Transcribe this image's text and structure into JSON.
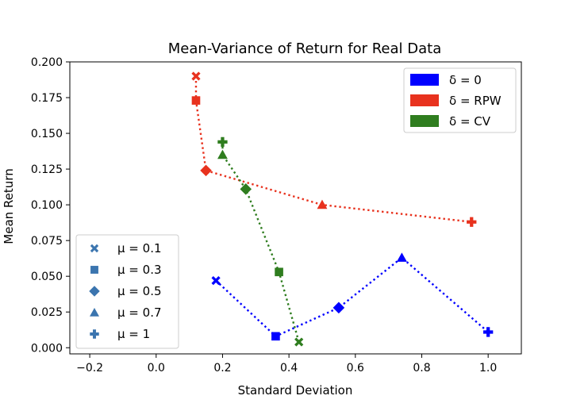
{
  "chart_data": {
    "type": "scatter",
    "title": "Mean-Variance of Return for Real Data",
    "xlabel": "Standard Deviation",
    "ylabel": "Mean Return",
    "xlim": [
      -0.26,
      1.1
    ],
    "ylim": [
      -0.0043,
      0.2
    ],
    "xticks": [
      -0.2,
      0.0,
      0.2,
      0.4,
      0.6,
      0.8,
      1.0
    ],
    "xtick_labels": [
      "−0.2",
      "0.0",
      "0.2",
      "0.4",
      "0.6",
      "0.8",
      "1.0"
    ],
    "yticks": [
      0.0,
      0.025,
      0.05,
      0.075,
      0.1,
      0.125,
      0.15,
      0.175,
      0.2
    ],
    "ytick_labels": [
      "0.000",
      "0.025",
      "0.050",
      "0.075",
      "0.100",
      "0.125",
      "0.150",
      "0.175",
      "0.200"
    ],
    "grid": false,
    "legend_color_placement": "top-right",
    "legend_marker_placement": "lower-left",
    "marker_color": "#3b75af",
    "color_legend": [
      {
        "label": "δ = 0",
        "color": "#0000ff"
      },
      {
        "label": "δ = RPW",
        "color": "#e8321e"
      },
      {
        "label": "δ = CV",
        "color": "#2f7d1f"
      }
    ],
    "marker_legend": [
      {
        "label": "μ = 0.1",
        "marker": "x"
      },
      {
        "label": "μ = 0.3",
        "marker": "square"
      },
      {
        "label": "μ = 0.5",
        "marker": "diamond"
      },
      {
        "label": "μ = 0.7",
        "marker": "triangle"
      },
      {
        "label": "μ = 1",
        "marker": "plus"
      }
    ],
    "series": [
      {
        "name": "δ = 0",
        "color": "#0000ff",
        "line_style": "dotted",
        "points": [
          {
            "x": 0.18,
            "y": 0.047,
            "marker": "x"
          },
          {
            "x": 0.36,
            "y": 0.008,
            "marker": "square"
          },
          {
            "x": 0.55,
            "y": 0.028,
            "marker": "diamond"
          },
          {
            "x": 0.74,
            "y": 0.063,
            "marker": "triangle"
          },
          {
            "x": 1.0,
            "y": 0.011,
            "marker": "plus"
          }
        ]
      },
      {
        "name": "δ = RPW",
        "color": "#e8321e",
        "line_style": "dotted",
        "points": [
          {
            "x": 0.12,
            "y": 0.19,
            "marker": "x"
          },
          {
            "x": 0.12,
            "y": 0.173,
            "marker": "square"
          },
          {
            "x": 0.15,
            "y": 0.124,
            "marker": "diamond"
          },
          {
            "x": 0.5,
            "y": 0.1,
            "marker": "triangle"
          },
          {
            "x": 0.95,
            "y": 0.088,
            "marker": "plus"
          }
        ]
      },
      {
        "name": "δ = CV",
        "color": "#2f7d1f",
        "line_style": "dotted",
        "points": [
          {
            "x": 0.2,
            "y": 0.144,
            "marker": "plus"
          },
          {
            "x": 0.2,
            "y": 0.135,
            "marker": "triangle"
          },
          {
            "x": 0.27,
            "y": 0.111,
            "marker": "diamond"
          },
          {
            "x": 0.37,
            "y": 0.053,
            "marker": "square"
          },
          {
            "x": 0.43,
            "y": 0.004,
            "marker": "x"
          }
        ]
      }
    ]
  }
}
